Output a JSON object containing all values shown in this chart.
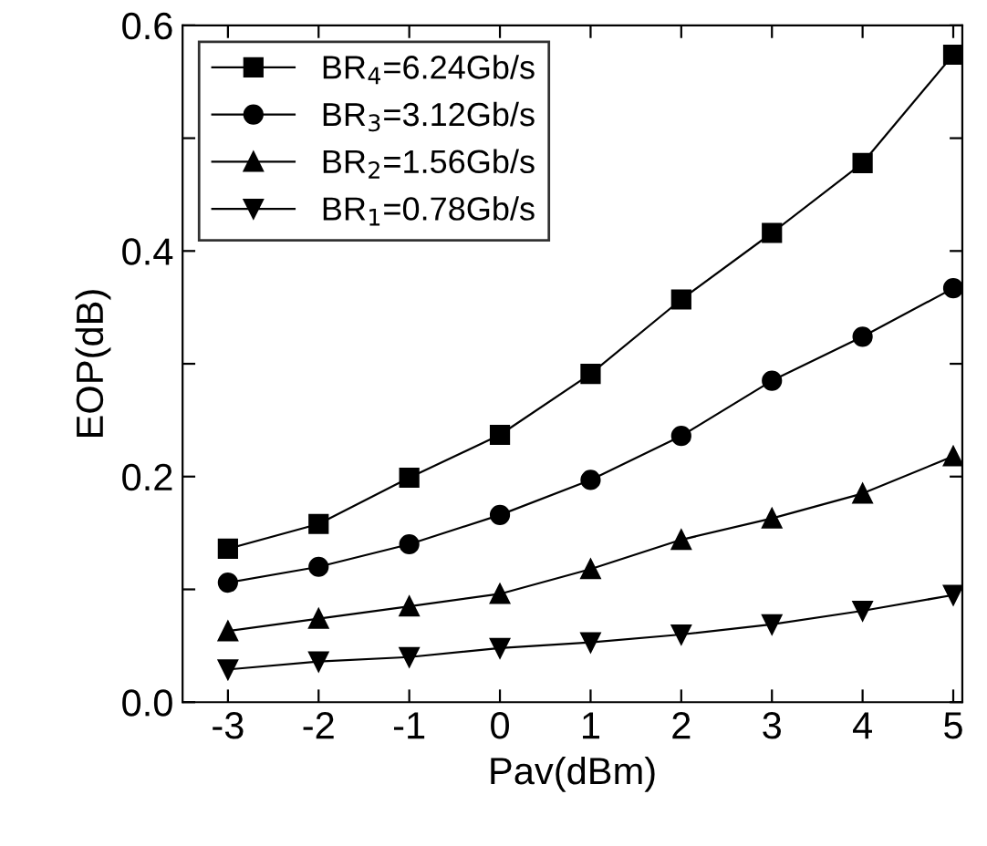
{
  "chart_data": {
    "type": "line",
    "xlabel": "Pav(dBm)",
    "ylabel": "EOP(dB)",
    "x": [
      -3,
      -2,
      -1,
      0,
      1,
      2,
      3,
      4,
      5
    ],
    "series": [
      {
        "name": "BR$_{4}$=6.24Gb/s",
        "color": "#000000",
        "marker": "square",
        "values": [
          0.136,
          0.158,
          0.199,
          0.237,
          0.291,
          0.357,
          0.416,
          0.478,
          0.574
        ]
      },
      {
        "name": "BR$_{3}$=3.12Gb/s",
        "color": "#000000",
        "marker": "circle",
        "values": [
          0.106,
          0.12,
          0.14,
          0.166,
          0.197,
          0.236,
          0.285,
          0.324,
          0.367
        ]
      },
      {
        "name": "BR$_{2}$=1.56Gb/s",
        "color": "#000000",
        "marker": "triangle",
        "values": [
          0.063,
          0.074,
          0.085,
          0.096,
          0.118,
          0.144,
          0.163,
          0.185,
          0.218
        ]
      },
      {
        "name": "BR$_{1}$=0.78Gb/s",
        "color": "#000000",
        "marker": "triangle_down",
        "values": [
          0.029,
          0.036,
          0.04,
          0.048,
          0.053,
          0.06,
          0.069,
          0.081,
          0.095
        ]
      }
    ],
    "xlim": [
      -3.5,
      5.1
    ],
    "xticks": [
      -3,
      -2,
      -1,
      0,
      1,
      2,
      3,
      4,
      5
    ],
    "ylim": [
      0,
      0.6
    ],
    "yticks": [
      {
        "value": 0.0,
        "label": "0.0"
      },
      {
        "value": 0.1,
        "label": null
      },
      {
        "value": 0.2,
        "label": "0.2"
      },
      {
        "value": 0.3,
        "label": null
      },
      {
        "value": 0.4,
        "label": "0.4"
      },
      {
        "value": 0.5,
        "label": null
      },
      {
        "value": 0.6,
        "label": "0.6"
      }
    ],
    "legend": "top left",
    "grid": false,
    "line_style": "solid"
  }
}
